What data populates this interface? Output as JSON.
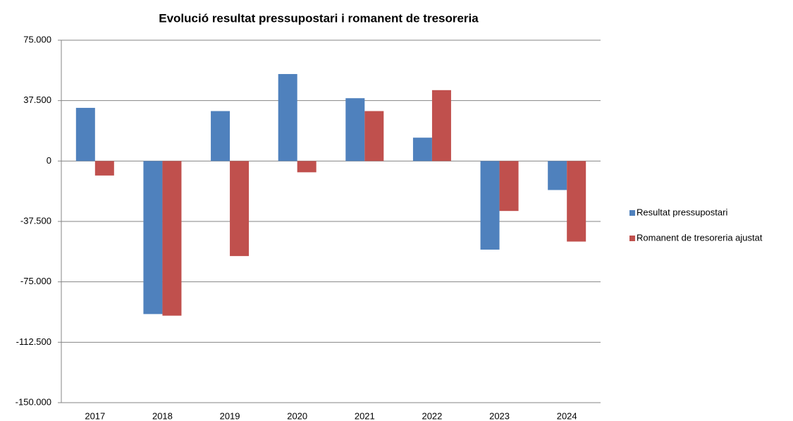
{
  "chart_data": {
    "type": "bar",
    "title": "Evolució resultat pressupostari i romanent de tresoreria",
    "categories": [
      "2017",
      "2018",
      "2019",
      "2020",
      "2021",
      "2022",
      "2023",
      "2024"
    ],
    "series": [
      {
        "name": "Resultat pressupostari",
        "color": "#4f81bd",
        "values": [
          33000,
          -95000,
          31000,
          54000,
          39000,
          14500,
          -55000,
          -18000
        ]
      },
      {
        "name": "Romanent de tresoreria ajustat",
        "color": "#c0504d",
        "values": [
          -9000,
          -96000,
          -59000,
          -7000,
          31000,
          44000,
          -31000,
          -50000
        ]
      }
    ],
    "ylim": [
      -150000,
      75000
    ],
    "yticks": [
      {
        "value": 75000,
        "label": "75.000"
      },
      {
        "value": 37500,
        "label": "37.500"
      },
      0,
      {
        "value": -37500,
        "label": "-37.500"
      },
      {
        "value": -75000,
        "label": "-75.000"
      },
      {
        "value": -112500,
        "label": "-112.500"
      },
      {
        "value": -150000,
        "label": "-150.000"
      }
    ],
    "grid": true,
    "legend": "right"
  }
}
